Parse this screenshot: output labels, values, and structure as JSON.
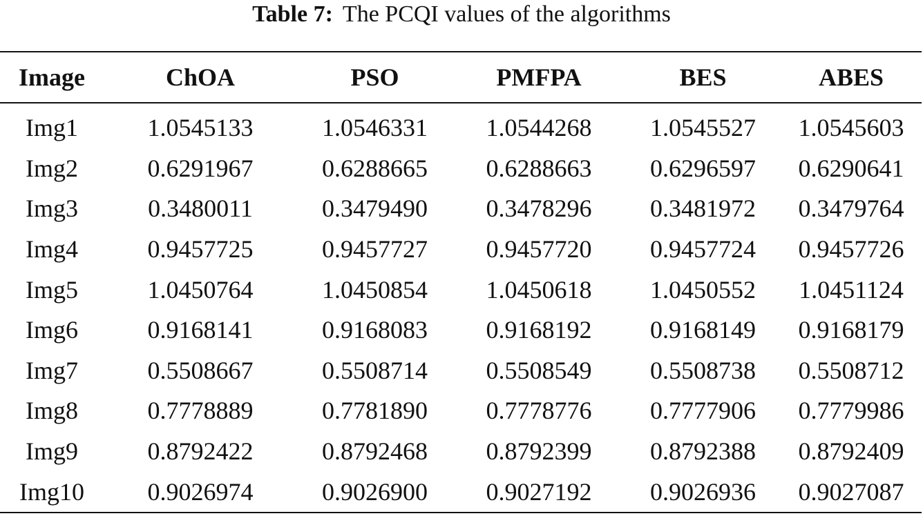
{
  "caption": {
    "label": "Table 7:",
    "text": "The PCQI values of the algorithms"
  },
  "table": {
    "columns": [
      "Image",
      "ChOA",
      "PSO",
      "PMFPA",
      "BES",
      "ABES"
    ],
    "rows": [
      [
        "Img1",
        "1.0545133",
        "1.0546331",
        "1.0544268",
        "1.0545527",
        "1.0545603"
      ],
      [
        "Img2",
        "0.6291967",
        "0.6288665",
        "0.6288663",
        "0.6296597",
        "0.6290641"
      ],
      [
        "Img3",
        "0.3480011",
        "0.3479490",
        "0.3478296",
        "0.3481972",
        "0.3479764"
      ],
      [
        "Img4",
        "0.9457725",
        "0.9457727",
        "0.9457720",
        "0.9457724",
        "0.9457726"
      ],
      [
        "Img5",
        "1.0450764",
        "1.0450854",
        "1.0450618",
        "1.0450552",
        "1.0451124"
      ],
      [
        "Img6",
        "0.9168141",
        "0.9168083",
        "0.9168192",
        "0.9168149",
        "0.9168179"
      ],
      [
        "Img7",
        "0.5508667",
        "0.5508714",
        "0.5508549",
        "0.5508738",
        "0.5508712"
      ],
      [
        "Img8",
        "0.7778889",
        "0.7781890",
        "0.7778776",
        "0.7777906",
        "0.7779986"
      ],
      [
        "Img9",
        "0.8792422",
        "0.8792468",
        "0.8792399",
        "0.8792388",
        "0.8792409"
      ],
      [
        "Img10",
        "0.9026974",
        "0.9026900",
        "0.9027192",
        "0.9026936",
        "0.9027087"
      ]
    ]
  }
}
